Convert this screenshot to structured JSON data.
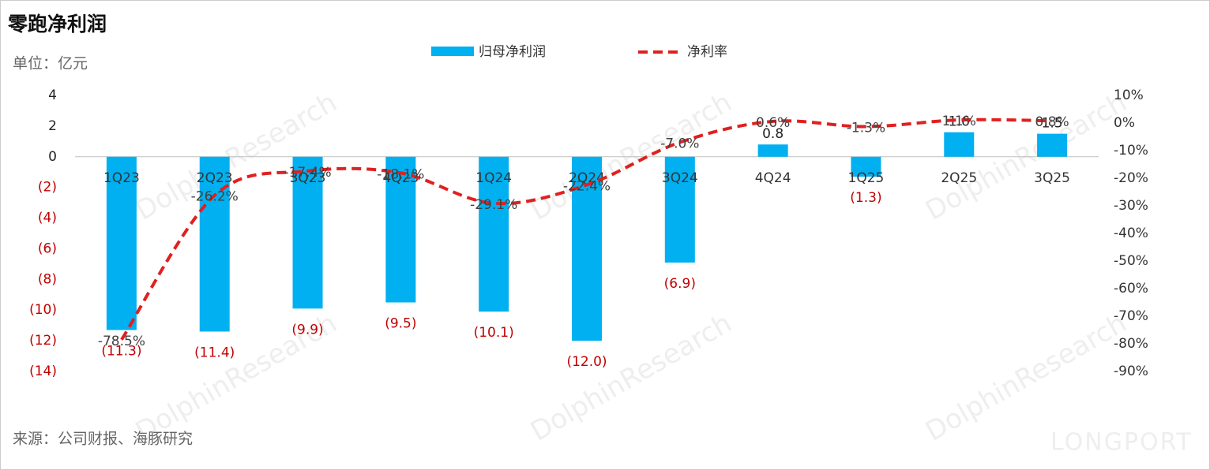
{
  "chart_data": {
    "type": "bar_line",
    "title": "零跑净利润",
    "subtitle": "单位：亿元",
    "source": "来源：公司财报、海豚研究",
    "watermark": "DolphinResearch",
    "brand": "LONGPORT",
    "categories": [
      "1Q23",
      "2Q23",
      "3Q23",
      "4Q23",
      "1Q24",
      "2Q24",
      "3Q24",
      "4Q24",
      "1Q25",
      "2Q25",
      "3Q25"
    ],
    "series": [
      {
        "name": "归母净利润",
        "color": "#00b0f0",
        "type": "bar",
        "values": [
          -11.3,
          -11.4,
          -9.9,
          -9.5,
          -10.1,
          -12.0,
          -6.9,
          0.8,
          -1.3,
          1.6,
          1.5
        ],
        "value_labels": [
          "(11.3)",
          "(11.4)",
          "(9.9)",
          "(9.5)",
          "(10.1)",
          "(12.0)",
          "(6.9)",
          "0.8",
          "(1.3)",
          "1.6",
          "1.5"
        ]
      },
      {
        "name": "净利率",
        "color": "#e02020",
        "type": "line",
        "axis": "y2",
        "values": [
          -78.5,
          -26.2,
          -17.4,
          -18.1,
          -29.1,
          -22.4,
          -7.0,
          0.6,
          -1.3,
          1.1,
          0.8
        ],
        "value_labels": [
          "-78.5%",
          "-26.2%",
          "-17.4%",
          "-18.1%",
          "-29.1%",
          "-22.4%",
          "-7.0%",
          "0.6%",
          "-1.3%",
          "1.1%",
          "0.8%"
        ]
      }
    ],
    "ylim": [
      -14,
      4
    ],
    "yticks": [
      4,
      2,
      0,
      {
        "value": -2,
        "label": "(2)"
      },
      {
        "value": -4,
        "label": "(4)"
      },
      {
        "value": -6,
        "label": "(6)"
      },
      {
        "value": -8,
        "label": "(8)"
      },
      {
        "value": -10,
        "label": "(10)"
      },
      {
        "value": -12,
        "label": "(12)"
      },
      {
        "value": -14,
        "label": "(14)"
      }
    ],
    "y2lim": [
      -90,
      10
    ],
    "y2ticks": [
      {
        "value": 10,
        "label": "10%"
      },
      {
        "value": 0,
        "label": "0%"
      },
      {
        "value": -10,
        "label": "-10%"
      },
      {
        "value": -20,
        "label": "-20%"
      },
      {
        "value": -30,
        "label": "-30%"
      },
      {
        "value": -40,
        "label": "-40%"
      },
      {
        "value": -50,
        "label": "-50%"
      },
      {
        "value": -60,
        "label": "-60%"
      },
      {
        "value": -70,
        "label": "-70%"
      },
      {
        "value": -80,
        "label": "-80%"
      },
      {
        "value": -90,
        "label": "-90%"
      }
    ]
  }
}
